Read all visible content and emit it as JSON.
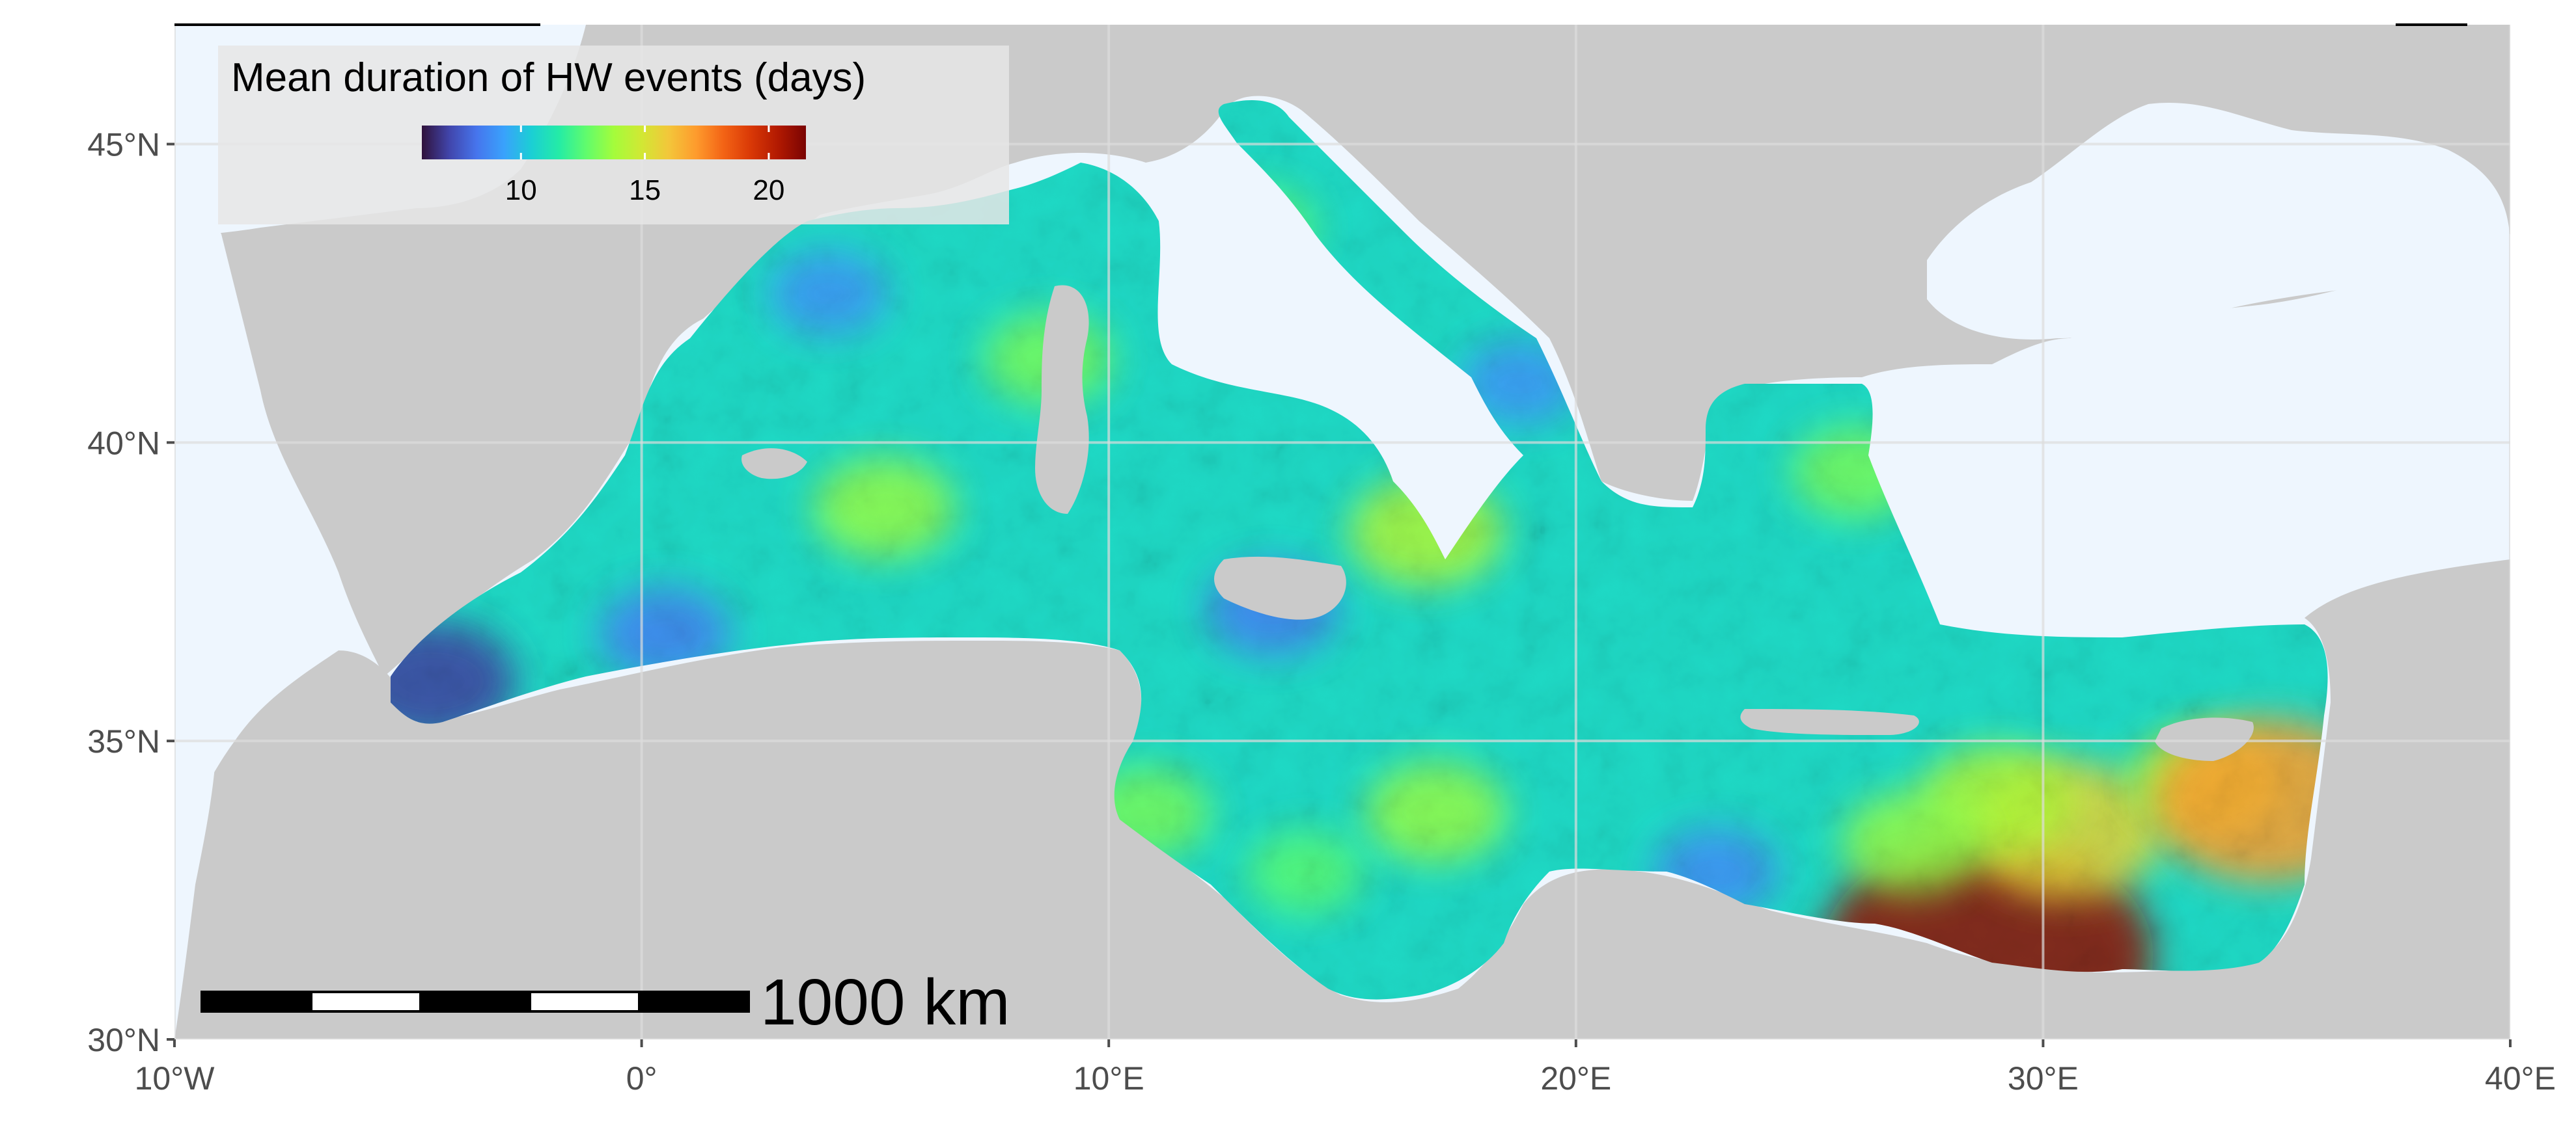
{
  "map": {
    "extent": {
      "lon_min": -10,
      "lon_max": 40,
      "lat_min": 30,
      "lat_max": 47
    },
    "colors": {
      "land": "#cacaca",
      "outside_sea": "#eef6fe",
      "grid": "#dddddd",
      "axis": "#4d4d4d"
    },
    "axes": {
      "x_ticks": [
        {
          "value": -10,
          "label": "10°W"
        },
        {
          "value": 0,
          "label": "0°"
        },
        {
          "value": 10,
          "label": "10°E"
        },
        {
          "value": 20,
          "label": "20°E"
        },
        {
          "value": 30,
          "label": "30°E"
        },
        {
          "value": 40,
          "label": "40°E"
        }
      ],
      "y_ticks": [
        {
          "value": 30,
          "label": "30°N"
        },
        {
          "value": 35,
          "label": "35°N"
        },
        {
          "value": 40,
          "label": "40°N"
        },
        {
          "value": 45,
          "label": "45°N"
        }
      ]
    },
    "legend": {
      "title": "Mean duration of HW events (days)",
      "min": 6,
      "max": 21.5,
      "ticks": [
        {
          "value": 10,
          "label": "10"
        },
        {
          "value": 15,
          "label": "15"
        },
        {
          "value": 20,
          "label": "20"
        }
      ],
      "colormap": [
        "#30123b",
        "#4145ab",
        "#4675ed",
        "#39a2fc",
        "#1bcfd4",
        "#24eca6",
        "#61fc6c",
        "#a4fc3b",
        "#d1e834",
        "#f3c63a",
        "#fe9b2d",
        "#f36315",
        "#d93806",
        "#b11901",
        "#7a0402"
      ]
    },
    "scalebar": {
      "label": "1000 km"
    },
    "field": {
      "base_value": 10.8
    },
    "hotspots": [
      {
        "lon": 28.8,
        "lat": 31.4,
        "value": 21
      },
      {
        "lon": 30.5,
        "lat": 33.5,
        "value": 15.5
      },
      {
        "lon": 29,
        "lat": 34,
        "value": 14
      },
      {
        "lon": 33.5,
        "lat": 34.3,
        "value": 14
      },
      {
        "lon": 34.8,
        "lat": 34,
        "value": 17
      },
      {
        "lon": 27.2,
        "lat": 33.3,
        "value": 13.5
      },
      {
        "lon": 17,
        "lat": 33.8,
        "value": 13.5
      },
      {
        "lon": 16.8,
        "lat": 38.5,
        "value": 14
      },
      {
        "lon": 5.2,
        "lat": 38.9,
        "value": 13.5
      },
      {
        "lon": 8.7,
        "lat": 41.4,
        "value": 13
      },
      {
        "lon": 10.8,
        "lat": 33.8,
        "value": 13
      },
      {
        "lon": 14.2,
        "lat": 32.8,
        "value": 12.5
      },
      {
        "lon": 13.2,
        "lat": 43.6,
        "value": 12.5
      },
      {
        "lon": 26,
        "lat": 39.5,
        "value": 13
      }
    ],
    "coldspots": [
      {
        "lon": -4.5,
        "lat": 36,
        "value": 7
      },
      {
        "lon": 0.5,
        "lat": 36.8,
        "value": 8.5
      },
      {
        "lon": 13.5,
        "lat": 37.2,
        "value": 8.5
      },
      {
        "lon": 23,
        "lat": 32.8,
        "value": 8.8
      },
      {
        "lon": 4,
        "lat": 42.5,
        "value": 9
      },
      {
        "lon": 18.8,
        "lat": 41,
        "value": 9
      }
    ]
  }
}
